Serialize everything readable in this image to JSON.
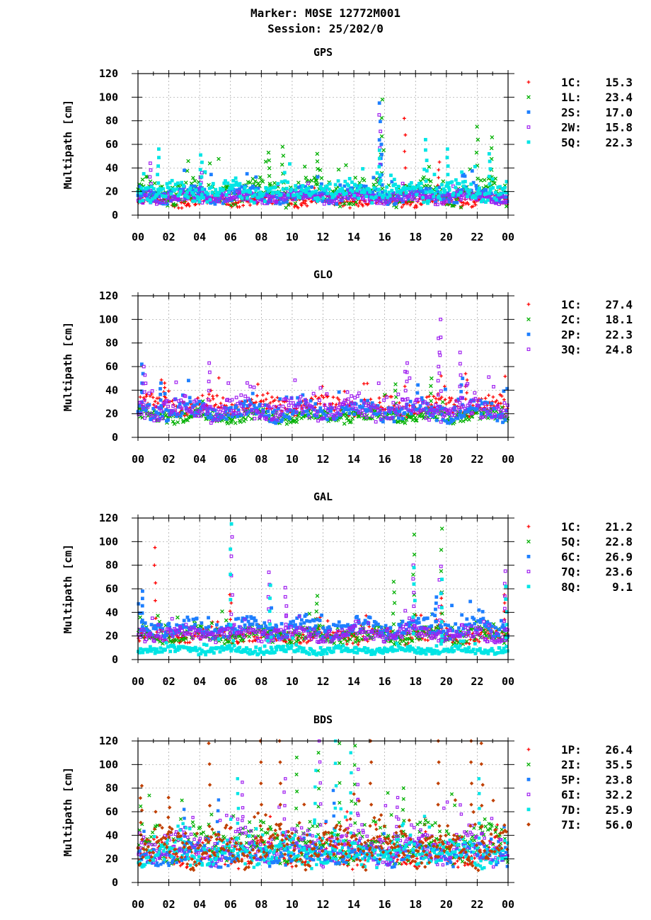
{
  "header": {
    "title_line1": "Marker: M0SE 12772M001",
    "title_line2": "Session: 25/202/0"
  },
  "colors": {
    "red": "#ff0000",
    "green": "#00b000",
    "blue": "#1e7fff",
    "purple": "#a020f0",
    "cyan": "#00e5e5",
    "brown": "#c04000"
  },
  "chart_data": [
    {
      "type": "scatter",
      "title": "GPS",
      "ylabel": "Multipath [cm]",
      "ylim": [
        0,
        120
      ],
      "yticks": [
        "0",
        "20",
        "40",
        "60",
        "80",
        "100",
        "120"
      ],
      "xlim": [
        0,
        24
      ],
      "xticks": [
        "00",
        "02",
        "04",
        "06",
        "08",
        "10",
        "12",
        "14",
        "16",
        "18",
        "20",
        "22",
        "00"
      ],
      "grid": true,
      "legend_position": "right",
      "series": [
        {
          "name": "1C:",
          "value": "15.3",
          "marker": "plus",
          "color": "#ff0000",
          "base": 12,
          "spread": 6,
          "peaks": [
            [
              17.3,
              82
            ],
            [
              19.5,
              45
            ]
          ]
        },
        {
          "name": "1L:",
          "value": "23.4",
          "marker": "cross",
          "color": "#00b000",
          "base": 20,
          "spread": 14,
          "peaks": [
            [
              15.8,
              98
            ],
            [
              22,
              75
            ],
            [
              22.9,
              66
            ],
            [
              9.4,
              58
            ],
            [
              8.5,
              53
            ],
            [
              11.6,
              52
            ]
          ]
        },
        {
          "name": "2S:",
          "value": "17.0",
          "marker": "square",
          "color": "#1e7fff",
          "base": 17,
          "spread": 8,
          "peaks": [
            [
              15.7,
              95
            ],
            [
              15.8,
              60
            ]
          ]
        },
        {
          "name": "2W:",
          "value": "15.8",
          "marker": "open-square",
          "color": "#a020f0",
          "base": 15,
          "spread": 6,
          "peaks": [
            [
              15.7,
              85
            ],
            [
              0.8,
              44
            ],
            [
              4.1,
              36
            ]
          ]
        },
        {
          "name": "5Q:",
          "value": "22.3",
          "marker": "square",
          "color": "#00e5e5",
          "base": 20,
          "spread": 10,
          "peaks": [
            [
              1.3,
              56
            ],
            [
              4.1,
              51
            ],
            [
              18.7,
              64
            ],
            [
              20.1,
              56
            ],
            [
              15.7,
              55
            ],
            [
              22.8,
              52
            ]
          ]
        }
      ]
    },
    {
      "type": "scatter",
      "title": "GLO",
      "ylabel": "Multipath [cm]",
      "ylim": [
        0,
        120
      ],
      "yticks": [
        "0",
        "20",
        "40",
        "60",
        "80",
        "100",
        "120"
      ],
      "xlim": [
        0,
        24
      ],
      "xticks": [
        "00",
        "02",
        "04",
        "06",
        "08",
        "10",
        "12",
        "14",
        "16",
        "18",
        "20",
        "22",
        "00"
      ],
      "grid": true,
      "legend_position": "right",
      "series": [
        {
          "name": "1C:",
          "value": "27.4",
          "marker": "plus",
          "color": "#ff0000",
          "base": 27,
          "spread": 10,
          "peaks": [
            [
              21.3,
              54
            ],
            [
              1.7,
              46
            ]
          ]
        },
        {
          "name": "2C:",
          "value": "18.1",
          "marker": "cross",
          "color": "#00b000",
          "base": 18,
          "spread": 7,
          "peaks": [
            [
              19.0,
              50
            ],
            [
              16.7,
              45
            ]
          ]
        },
        {
          "name": "2P:",
          "value": "22.3",
          "marker": "square",
          "color": "#1e7fff",
          "base": 22,
          "spread": 10,
          "peaks": [
            [
              0.3,
              62
            ],
            [
              21.0,
              50
            ],
            [
              1.5,
              46
            ]
          ]
        },
        {
          "name": "3Q:",
          "value": "24.8",
          "marker": "open-square",
          "color": "#a020f0",
          "base": 24,
          "spread": 12,
          "peaks": [
            [
              19.6,
              100
            ],
            [
              19.5,
              84
            ],
            [
              20.9,
              72
            ],
            [
              4.6,
              63
            ],
            [
              17.4,
              63
            ],
            [
              0.4,
              60
            ]
          ]
        }
      ]
    },
    {
      "type": "scatter",
      "title": "GAL",
      "ylabel": "Multipath [cm]",
      "ylim": [
        0,
        120
      ],
      "yticks": [
        "0",
        "20",
        "40",
        "60",
        "80",
        "100",
        "120"
      ],
      "xlim": [
        0,
        24
      ],
      "xticks": [
        "00",
        "02",
        "04",
        "06",
        "08",
        "10",
        "12",
        "14",
        "16",
        "18",
        "20",
        "22",
        "00"
      ],
      "grid": true,
      "legend_position": "right",
      "series": [
        {
          "name": "1C:",
          "value": "21.2",
          "marker": "plus",
          "color": "#ff0000",
          "base": 20,
          "spread": 8,
          "peaks": [
            [
              1.1,
              95
            ],
            [
              6.0,
              55
            ],
            [
              23.8,
              55
            ],
            [
              19.7,
              52
            ]
          ]
        },
        {
          "name": "5Q:",
          "value": "22.8",
          "marker": "cross",
          "color": "#00b000",
          "base": 21,
          "spread": 9,
          "peaks": [
            [
              19.7,
              111
            ],
            [
              17.9,
              106
            ],
            [
              16.6,
              66
            ],
            [
              11.6,
              54
            ]
          ]
        },
        {
          "name": "6C:",
          "value": "26.9",
          "marker": "square",
          "color": "#1e7fff",
          "base": 27,
          "spread": 10,
          "peaks": [
            [
              0.3,
              58
            ],
            [
              19.3,
              53
            ]
          ]
        },
        {
          "name": "7Q:",
          "value": "23.6",
          "marker": "open-square",
          "color": "#a020f0",
          "base": 22,
          "spread": 8,
          "peaks": [
            [
              6.1,
              104
            ],
            [
              17.9,
              80
            ],
            [
              19.6,
              79
            ],
            [
              23.8,
              75
            ],
            [
              8.5,
              74
            ],
            [
              9.6,
              61
            ]
          ]
        },
        {
          "name": "8Q:",
          "value": "9.1",
          "marker": "square",
          "color": "#00e5e5",
          "base": 8,
          "spread": 4,
          "peaks": [
            [
              6.0,
              115
            ],
            [
              17.9,
              78
            ],
            [
              19.7,
              68
            ],
            [
              8.6,
              63
            ],
            [
              23.9,
              62
            ]
          ]
        }
      ]
    },
    {
      "type": "scatter",
      "title": "BDS",
      "ylabel": "Multipath [cm]",
      "ylim": [
        0,
        120
      ],
      "yticks": [
        "0",
        "20",
        "40",
        "60",
        "80",
        "100",
        "120"
      ],
      "xlim": [
        0,
        24
      ],
      "xticks": [
        "00",
        "02",
        "04",
        "06",
        "08",
        "10",
        "12",
        "14",
        "16",
        "18",
        "20",
        "22",
        "00"
      ],
      "grid": true,
      "legend_position": "right",
      "series": [
        {
          "name": "1P:",
          "value": "26.4",
          "marker": "plus",
          "color": "#ff0000",
          "base": 25,
          "spread": 14,
          "peaks": [
            [
              18.6,
              55
            ],
            [
              13.6,
              60
            ]
          ]
        },
        {
          "name": "2I:",
          "value": "35.5",
          "marker": "cross",
          "color": "#00b000",
          "base": 34,
          "spread": 20,
          "peaks": [
            [
              11.7,
              110
            ],
            [
              13.1,
              118
            ],
            [
              14.1,
              116
            ],
            [
              10.3,
              106
            ],
            [
              17.2,
              80
            ]
          ]
        },
        {
          "name": "5P:",
          "value": "23.8",
          "marker": "square",
          "color": "#1e7fff",
          "base": 24,
          "spread": 12,
          "peaks": [
            [
              3.0,
              62
            ],
            [
              5.2,
              70
            ],
            [
              12.7,
              78
            ]
          ]
        },
        {
          "name": "6I:",
          "value": "32.2",
          "marker": "open-square",
          "color": "#a020f0",
          "base": 31,
          "spread": 18,
          "peaks": [
            [
              11.8,
              120
            ],
            [
              14.3,
              96
            ],
            [
              9.5,
              88
            ],
            [
              6.8,
              85
            ],
            [
              16.8,
              72
            ]
          ]
        },
        {
          "name": "7D:",
          "value": "25.9",
          "marker": "square",
          "color": "#00e5e5",
          "base": 25,
          "spread": 14,
          "peaks": [
            [
              12.8,
              120
            ],
            [
              13.8,
              110
            ],
            [
              22.1,
              88
            ],
            [
              11.5,
              95
            ],
            [
              6.5,
              88
            ]
          ]
        },
        {
          "name": "7I:",
          "value": "56.0",
          "marker": "diamond",
          "color": "#c04000",
          "base": 30,
          "spread": 20,
          "peaks": [
            [
              4.6,
              118
            ],
            [
              8.0,
              120
            ],
            [
              9.2,
              120
            ],
            [
              15.1,
              120
            ],
            [
              19.5,
              120
            ],
            [
              21.6,
              120
            ],
            [
              22.3,
              118
            ],
            [
              0.2,
              82
            ],
            [
              2.0,
              72
            ]
          ]
        }
      ]
    }
  ]
}
